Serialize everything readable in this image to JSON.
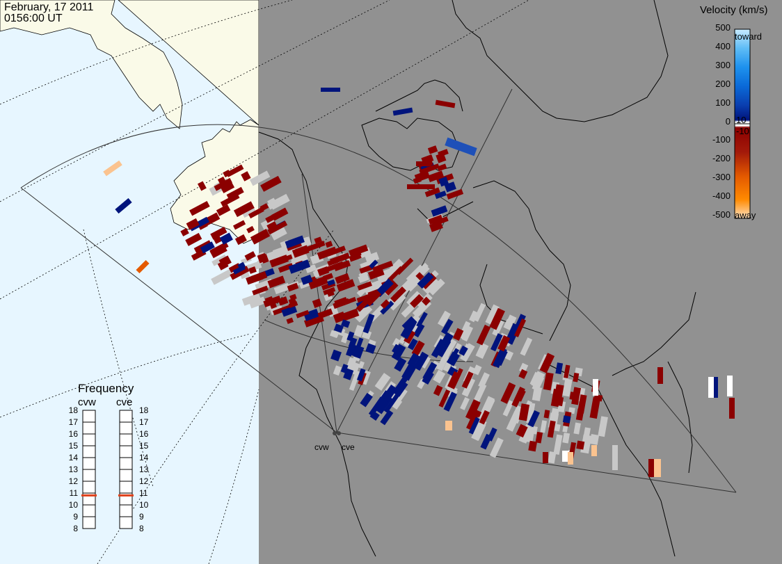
{
  "header": {
    "date": "February, 17 2011",
    "time": "0156:00 UT"
  },
  "colorbar": {
    "title": "Velocity (km/s)",
    "ticks": [
      "500",
      "400",
      "300",
      "200",
      "100",
      "10",
      "0",
      "-10",
      "-100",
      "-200",
      "-300",
      "-400",
      "-500"
    ],
    "toward_label": "toward",
    "away_label": "away",
    "colors": [
      "#fde0c0",
      "#ffb070",
      "#ff8a00",
      "#e45a00",
      "#a31a0a",
      "#8b0000",
      "#ffffff",
      "#00147c",
      "#0a3fb0",
      "#0a6ad8",
      "#1e92ee",
      "#5fbdf6",
      "#c2e8ff"
    ]
  },
  "frequency": {
    "title": "Frequency",
    "radars": [
      {
        "name": "cvw",
        "value_mhz": 10.8
      },
      {
        "name": "cve",
        "value_mhz": 10.8
      }
    ],
    "scale": [
      "18",
      "17",
      "16",
      "15",
      "14",
      "13",
      "12",
      "11",
      "10",
      "9",
      "8"
    ],
    "marker_color": "#e0401a"
  },
  "sites": {
    "west": "cvw",
    "east": "cve"
  },
  "map_colors": {
    "ocean": "#e7f6ff",
    "land_sunlit": "#fafae8",
    "night": "#919191",
    "coast": "#000000",
    "gs_scatter": "#c8c8c8"
  }
}
